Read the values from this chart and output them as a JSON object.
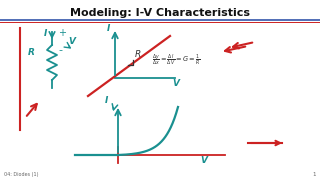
{
  "title": "Modeling: I-V Characteristics",
  "bg_color": "#ffffff",
  "title_color": "#111111",
  "teal": "#1a9090",
  "red": "#cc2222",
  "bottom_text": "04: Diodes (1)",
  "page_num": "1",
  "separator_color": "#3355aa",
  "separator_color2": "#cc2222"
}
